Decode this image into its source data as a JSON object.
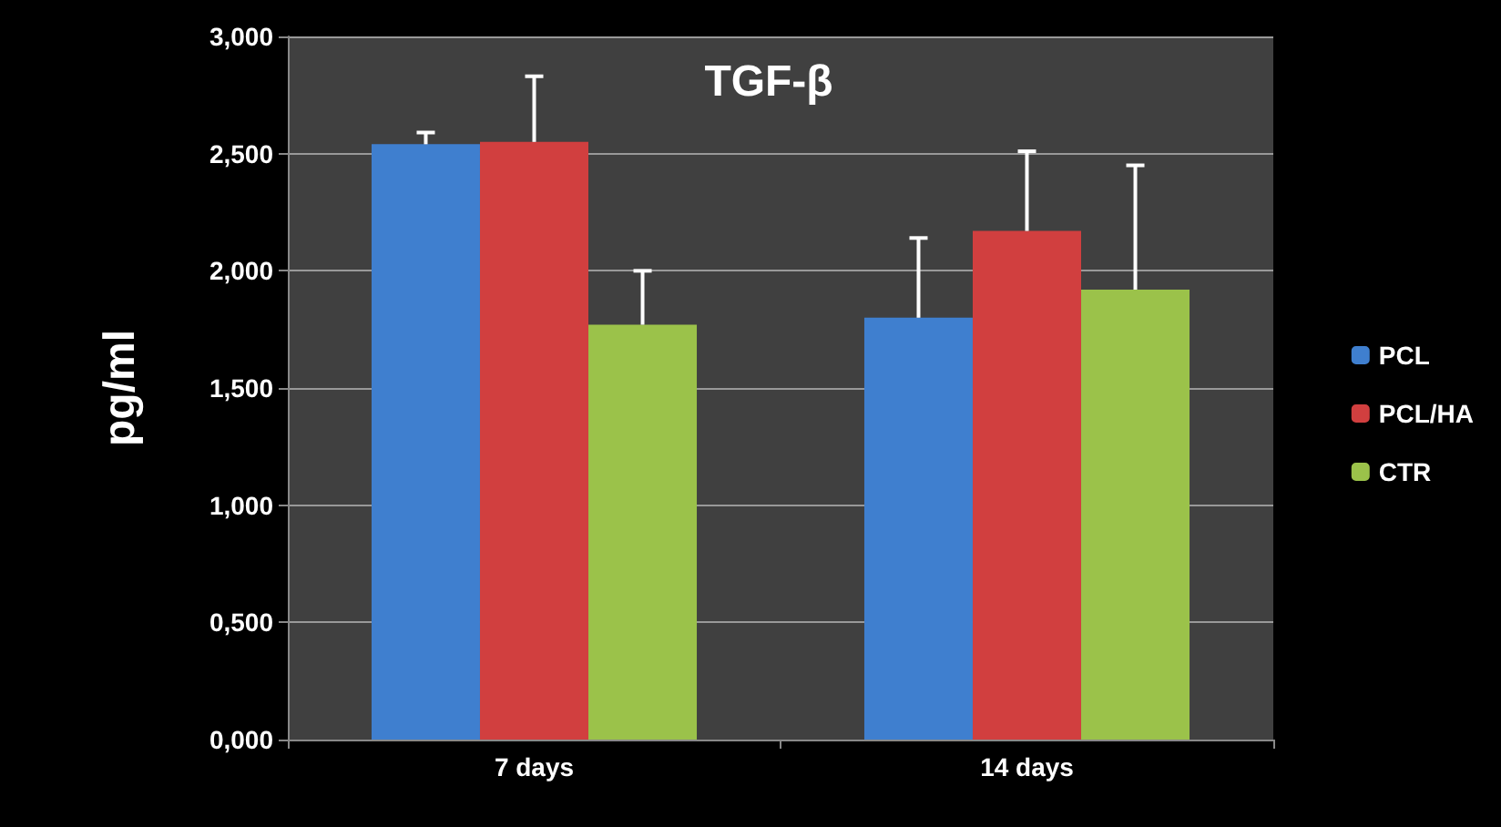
{
  "chart_data": {
    "type": "bar",
    "title": "TGF-β",
    "ylabel": "pg/ml",
    "categories": [
      "7 days",
      "14 days"
    ],
    "series": [
      {
        "name": "PCL",
        "color": "#3f7fcf",
        "values": [
          2.54,
          1.8
        ],
        "errors": [
          [
            2.54,
            2.59
          ],
          [
            1.8,
            2.14
          ]
        ]
      },
      {
        "name": "PCL/HA",
        "color": "#d13f3f",
        "values": [
          2.55,
          2.17
        ],
        "errors": [
          [
            2.55,
            2.83
          ],
          [
            2.17,
            2.51
          ]
        ]
      },
      {
        "name": "CTR",
        "color": "#9bc24a",
        "values": [
          1.77,
          1.92
        ],
        "errors": [
          [
            1.77,
            2.0
          ],
          [
            1.92,
            2.45
          ]
        ]
      }
    ],
    "ylim": [
      0,
      3
    ],
    "yticks": [
      {
        "value": 0,
        "label": "0,000"
      },
      {
        "value": 0.5,
        "label": "0,500"
      },
      {
        "value": 1,
        "label": "1,000"
      },
      {
        "value": 1.5,
        "label": "1,500"
      },
      {
        "value": 2,
        "label": "2,000"
      },
      {
        "value": 2.5,
        "label": "2,500"
      },
      {
        "value": 3,
        "label": "3,000"
      }
    ],
    "grid": "y",
    "legend": "right"
  }
}
